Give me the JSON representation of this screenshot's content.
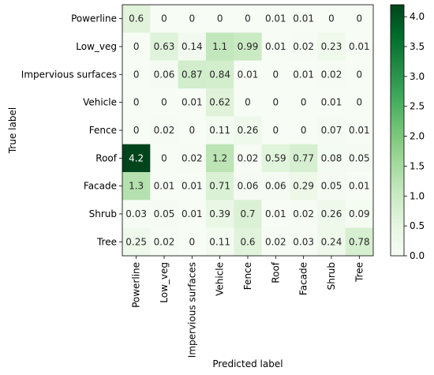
{
  "chart_data": {
    "type": "heatmap",
    "title": "",
    "xlabel": "Predicted label",
    "ylabel": "True label",
    "row_labels": [
      "Powerline",
      "Low_veg",
      "Impervious surfaces",
      "Vehicle",
      "Fence",
      "Roof",
      "Facade",
      "Shrub",
      "Tree"
    ],
    "col_labels": [
      "Powerline",
      "Low_veg",
      "Impervious surfaces",
      "Vehicle",
      "Fence",
      "Roof",
      "Facade",
      "Shrub",
      "Tree"
    ],
    "values": [
      [
        "0.6",
        "0",
        "0",
        "0",
        "0",
        "0.01",
        "0.01",
        "0",
        "0"
      ],
      [
        "0",
        "0.63",
        "0.14",
        "1.1",
        "0.99",
        "0.01",
        "0.02",
        "0.23",
        "0.01"
      ],
      [
        "0",
        "0.06",
        "0.87",
        "0.84",
        "0.01",
        "0",
        "0.01",
        "0.02",
        "0"
      ],
      [
        "0",
        "0",
        "0.01",
        "0.62",
        "0",
        "0",
        "0",
        "0.01",
        "0"
      ],
      [
        "0",
        "0.02",
        "0",
        "0.11",
        "0.26",
        "0",
        "0",
        "0.07",
        "0.01"
      ],
      [
        "4.2",
        "0",
        "0.02",
        "1.2",
        "0.02",
        "0.59",
        "0.77",
        "0.08",
        "0.05"
      ],
      [
        "1.3",
        "0.01",
        "0.01",
        "0.71",
        "0.06",
        "0.06",
        "0.29",
        "0.05",
        "0.01"
      ],
      [
        "0.03",
        "0.05",
        "0.01",
        "0.39",
        "0.7",
        "0.01",
        "0.02",
        "0.26",
        "0.09"
      ],
      [
        "0.25",
        "0.02",
        "0",
        "0.11",
        "0.6",
        "0.02",
        "0.03",
        "0.24",
        "0.78"
      ]
    ],
    "colorbar": {
      "colormap": "Greens",
      "range": [
        0,
        4.2
      ],
      "ticks": [
        "0.0",
        "0.5",
        "1.0",
        "1.5",
        "2.0",
        "2.5",
        "3.0",
        "3.5",
        "4.0"
      ]
    }
  }
}
